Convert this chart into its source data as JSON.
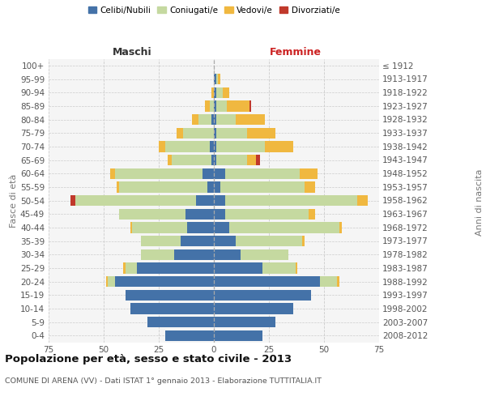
{
  "age_groups": [
    "0-4",
    "5-9",
    "10-14",
    "15-19",
    "20-24",
    "25-29",
    "30-34",
    "35-39",
    "40-44",
    "45-49",
    "50-54",
    "55-59",
    "60-64",
    "65-69",
    "70-74",
    "75-79",
    "80-84",
    "85-89",
    "90-94",
    "95-99",
    "100+"
  ],
  "birth_years": [
    "2008-2012",
    "2003-2007",
    "1998-2002",
    "1993-1997",
    "1988-1992",
    "1983-1987",
    "1978-1982",
    "1973-1977",
    "1968-1972",
    "1963-1967",
    "1958-1962",
    "1953-1957",
    "1948-1952",
    "1943-1947",
    "1938-1942",
    "1933-1937",
    "1928-1932",
    "1923-1927",
    "1918-1922",
    "1913-1917",
    "≤ 1912"
  ],
  "colors": {
    "celibi": "#4472a8",
    "coniugati": "#c5d9a0",
    "vedovi": "#f0b840",
    "divorziati": "#c0392b"
  },
  "maschi": {
    "celibi": [
      22,
      30,
      38,
      40,
      45,
      35,
      18,
      15,
      12,
      13,
      8,
      3,
      5,
      1,
      2,
      0,
      1,
      0,
      0,
      0,
      0
    ],
    "coniugati": [
      0,
      0,
      0,
      0,
      3,
      5,
      15,
      18,
      25,
      30,
      55,
      40,
      40,
      18,
      20,
      14,
      6,
      2,
      0,
      0,
      0
    ],
    "vedovi": [
      0,
      0,
      0,
      0,
      1,
      1,
      0,
      0,
      1,
      0,
      0,
      1,
      2,
      2,
      3,
      3,
      3,
      2,
      1,
      0,
      0
    ],
    "divorziati": [
      0,
      0,
      0,
      0,
      0,
      0,
      0,
      0,
      0,
      0,
      2,
      0,
      0,
      0,
      0,
      0,
      0,
      0,
      0,
      0,
      0
    ]
  },
  "femmine": {
    "celibi": [
      22,
      28,
      36,
      44,
      48,
      22,
      12,
      10,
      7,
      5,
      5,
      3,
      5,
      1,
      1,
      1,
      1,
      1,
      1,
      1,
      0
    ],
    "coniugati": [
      0,
      0,
      0,
      0,
      8,
      15,
      22,
      30,
      50,
      38,
      60,
      38,
      34,
      14,
      22,
      14,
      9,
      5,
      3,
      1,
      0
    ],
    "vedovi": [
      0,
      0,
      0,
      0,
      1,
      1,
      0,
      1,
      1,
      3,
      5,
      5,
      8,
      4,
      13,
      13,
      13,
      10,
      3,
      1,
      0
    ],
    "divorziati": [
      0,
      0,
      0,
      0,
      0,
      0,
      0,
      0,
      0,
      0,
      0,
      0,
      0,
      2,
      0,
      0,
      0,
      1,
      0,
      0,
      0
    ]
  },
  "xlim": 75,
  "xticks": [
    -75,
    -50,
    -25,
    0,
    25,
    50,
    75
  ],
  "title": "Popolazione per età, sesso e stato civile - 2013",
  "subtitle": "COMUNE DI ARENA (VV) - Dati ISTAT 1° gennaio 2013 - Elaborazione TUTTITALIA.IT",
  "header_left": "Maschi",
  "header_right": "Femmine",
  "ylabel_left": "Fasce di età",
  "ylabel_right": "Anni di nascita",
  "legend_labels": [
    "Celibi/Nubili",
    "Coniugati/e",
    "Vedovi/e",
    "Divorziati/e"
  ],
  "bg_color": "#f5f5f5",
  "grid_color": "#cccccc",
  "bar_height": 0.8
}
